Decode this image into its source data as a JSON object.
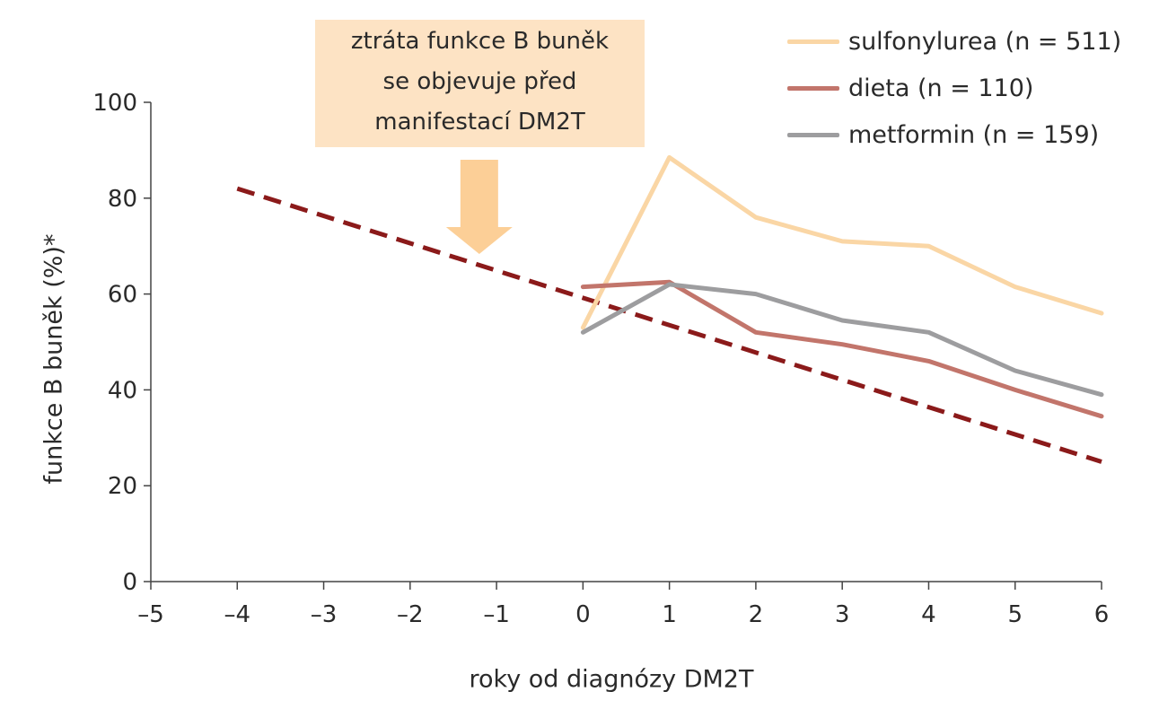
{
  "chart_data": {
    "type": "line",
    "xlabel": "roky od diagnózy DM2T",
    "ylabel": "funkce B buněk (%)*",
    "xlim": [
      -5,
      6
    ],
    "ylim": [
      0,
      100
    ],
    "x_ticks": [
      "–5",
      "–4",
      "–3",
      "–2",
      "–1",
      "0",
      "1",
      "2",
      "3",
      "4",
      "5",
      "6"
    ],
    "y_ticks": [
      "0",
      "20",
      "40",
      "60",
      "80",
      "100"
    ],
    "annotation": {
      "lines": [
        "ztráta funkce B buněk",
        "se objevuje před",
        "manifestací DM2T"
      ],
      "arrow_x": -1.2
    },
    "series": [
      {
        "name": "sulfonylurea (n = 511)",
        "color": "#fad6a5",
        "x": [
          0,
          1,
          2,
          3,
          4,
          5,
          6
        ],
        "values": [
          53,
          88.5,
          76,
          71,
          70,
          61.5,
          56
        ]
      },
      {
        "name": "dieta (n = 110)",
        "color": "#c2756b",
        "x": [
          0,
          1,
          2,
          3,
          4,
          5,
          6
        ],
        "values": [
          61.5,
          62.5,
          52,
          49.5,
          46,
          40,
          34.5
        ]
      },
      {
        "name": "metformin (n = 159)",
        "color": "#9d9d9f",
        "x": [
          0,
          1,
          2,
          3,
          4,
          5,
          6
        ],
        "values": [
          52,
          62,
          60,
          54.5,
          52,
          44,
          39
        ]
      }
    ],
    "trend": {
      "color": "#8b1a1a",
      "x": [
        -4,
        6
      ],
      "values": [
        82,
        25
      ]
    }
  }
}
